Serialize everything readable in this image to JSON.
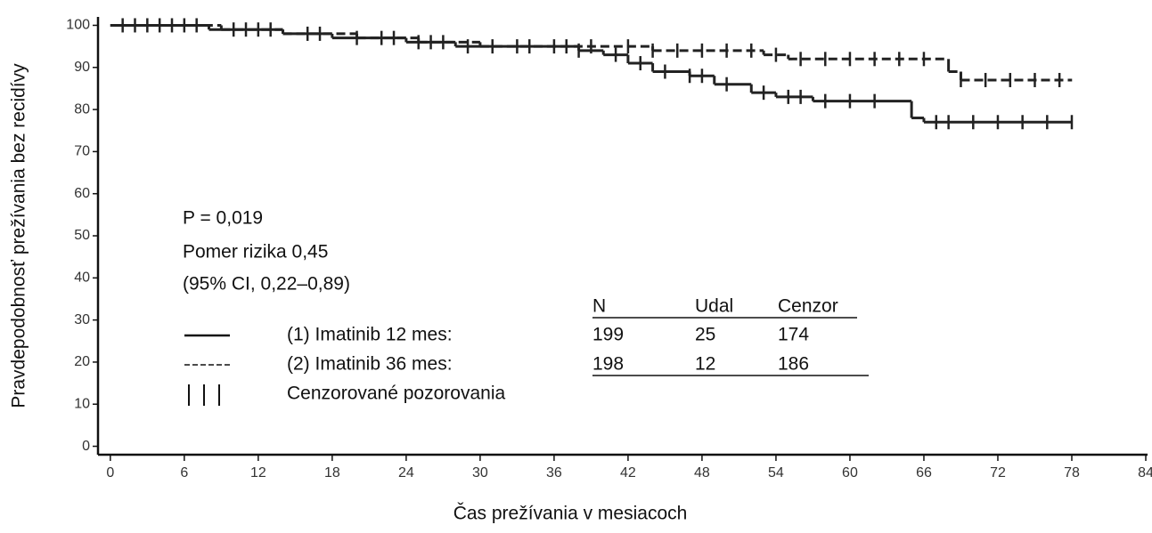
{
  "chart_data": {
    "type": "step",
    "x_label": "Čas prežívania v mesiacoch",
    "y_label": "Pravdepodobnosť prežívania bez recidívy",
    "xlim": [
      -1,
      84
    ],
    "ylim": [
      -2,
      102
    ],
    "xticks": [
      0,
      6,
      12,
      18,
      24,
      30,
      36,
      42,
      48,
      54,
      60,
      66,
      72,
      78,
      84
    ],
    "yticks": [
      0,
      10,
      20,
      30,
      40,
      50,
      60,
      70,
      80,
      90,
      100
    ],
    "series": [
      {
        "name": "(1) Imatinib 12 mes:",
        "color": "#222222",
        "dashed": false,
        "x": [
          0,
          8,
          14,
          18,
          24,
          28,
          38,
          40,
          42,
          44,
          47,
          49,
          52,
          54,
          57,
          65,
          66,
          78
        ],
        "values": [
          100,
          99,
          98,
          97,
          96,
          95,
          94,
          93,
          91,
          89,
          88,
          86,
          84,
          83,
          82,
          78,
          77,
          77
        ],
        "censored_x": [
          1,
          2,
          4,
          6,
          10,
          12,
          16,
          20,
          23,
          26,
          29,
          33,
          36,
          38,
          41,
          43,
          45,
          47,
          48,
          50,
          53,
          55,
          56,
          58,
          60,
          62,
          67,
          68,
          70,
          72,
          74,
          76,
          78
        ],
        "censored_values": [
          100,
          100,
          100,
          100,
          99,
          99,
          98,
          97,
          97,
          96,
          95,
          95,
          95,
          94,
          93,
          91,
          89,
          88,
          88,
          86,
          84,
          83,
          83,
          82,
          82,
          82,
          77,
          77,
          77,
          77,
          77,
          77,
          77
        ],
        "table": [
          199,
          25,
          174
        ]
      },
      {
        "name": "(2) Imatinib 36 mes:",
        "color": "#222222",
        "dashed": true,
        "x": [
          0,
          9,
          14,
          20,
          25,
          30,
          44,
          53,
          55,
          68,
          69,
          78
        ],
        "values": [
          100,
          99,
          98,
          97,
          96,
          95,
          94,
          93,
          92,
          89,
          87,
          87
        ],
        "censored_x": [
          3,
          5,
          7,
          11,
          13,
          17,
          22,
          25,
          27,
          31,
          34,
          37,
          39,
          42,
          44,
          46,
          48,
          50,
          52,
          54,
          56,
          58,
          60,
          62,
          64,
          66,
          69,
          71,
          73,
          75,
          77
        ],
        "censored_values": [
          100,
          100,
          100,
          99,
          99,
          98,
          97,
          96,
          96,
          95,
          95,
          95,
          95,
          95,
          94,
          94,
          94,
          94,
          94,
          93,
          92,
          92,
          92,
          92,
          92,
          92,
          87,
          87,
          87,
          87,
          87
        ],
        "table": [
          198,
          12,
          186
        ]
      }
    ],
    "censor_label": "Cenzorované pozorovania",
    "table_header": [
      "N",
      "Udal",
      "Cenzor"
    ],
    "annotations": [
      "P = 0,019",
      "Pomer rizika 0,45",
      "(95% CI, 0,22–0,89)"
    ]
  }
}
